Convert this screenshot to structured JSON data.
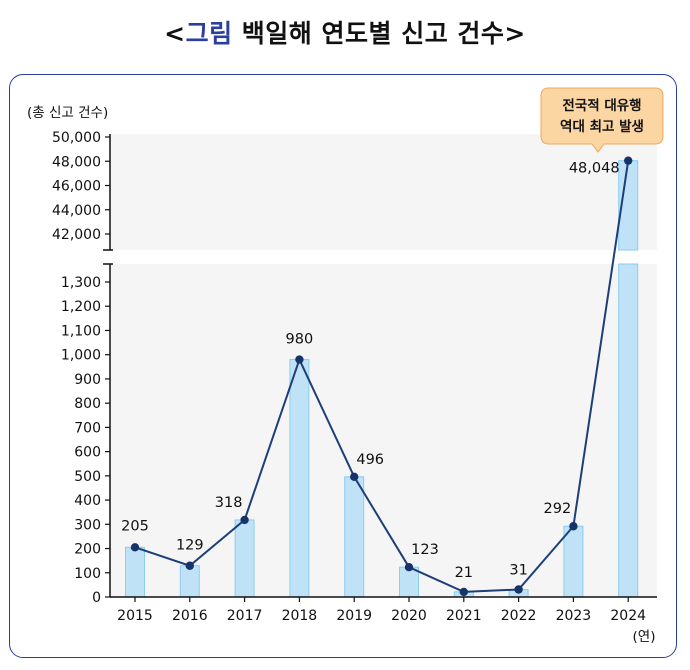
{
  "title": {
    "open": "<",
    "accent": "그림",
    "main": "백일해 연도별 신고 건수",
    "close": ">"
  },
  "chart_data": {
    "type": "bar",
    "ylabel": "(총 신고 건수)",
    "xlabel": "(연)",
    "categories": [
      "2015",
      "2016",
      "2017",
      "2018",
      "2019",
      "2020",
      "2021",
      "2022",
      "2023",
      "2024"
    ],
    "values": [
      205,
      129,
      318,
      980,
      496,
      123,
      21,
      31,
      292,
      48048
    ],
    "value_labels": [
      "205",
      "129",
      "318",
      "980",
      "496",
      "123",
      "21",
      "31",
      "292",
      "48,048"
    ],
    "overlay_line": true,
    "axis_break": true,
    "ylim_lower": [
      0,
      1300
    ],
    "ylim_upper": [
      42000,
      50000
    ],
    "yticks_lower": [
      "0",
      "100",
      "200",
      "300",
      "400",
      "500",
      "600",
      "700",
      "800",
      "900",
      "1,000",
      "1,100",
      "1,200",
      "1,300"
    ],
    "yticks_upper": [
      "42,000",
      "44,000",
      "46,000",
      "48,000",
      "50,000"
    ],
    "annotation": [
      "전국적 대유행",
      "역대 최고 발생"
    ],
    "colors": {
      "bar": "#bfe2f7",
      "bar_edge": "#8ccdf0",
      "line": "#1c3f7a",
      "marker": "#163469",
      "panel": "#f5f5f5",
      "callout": "#fbd6a3",
      "callout_edge": "#f0a75a"
    }
  }
}
